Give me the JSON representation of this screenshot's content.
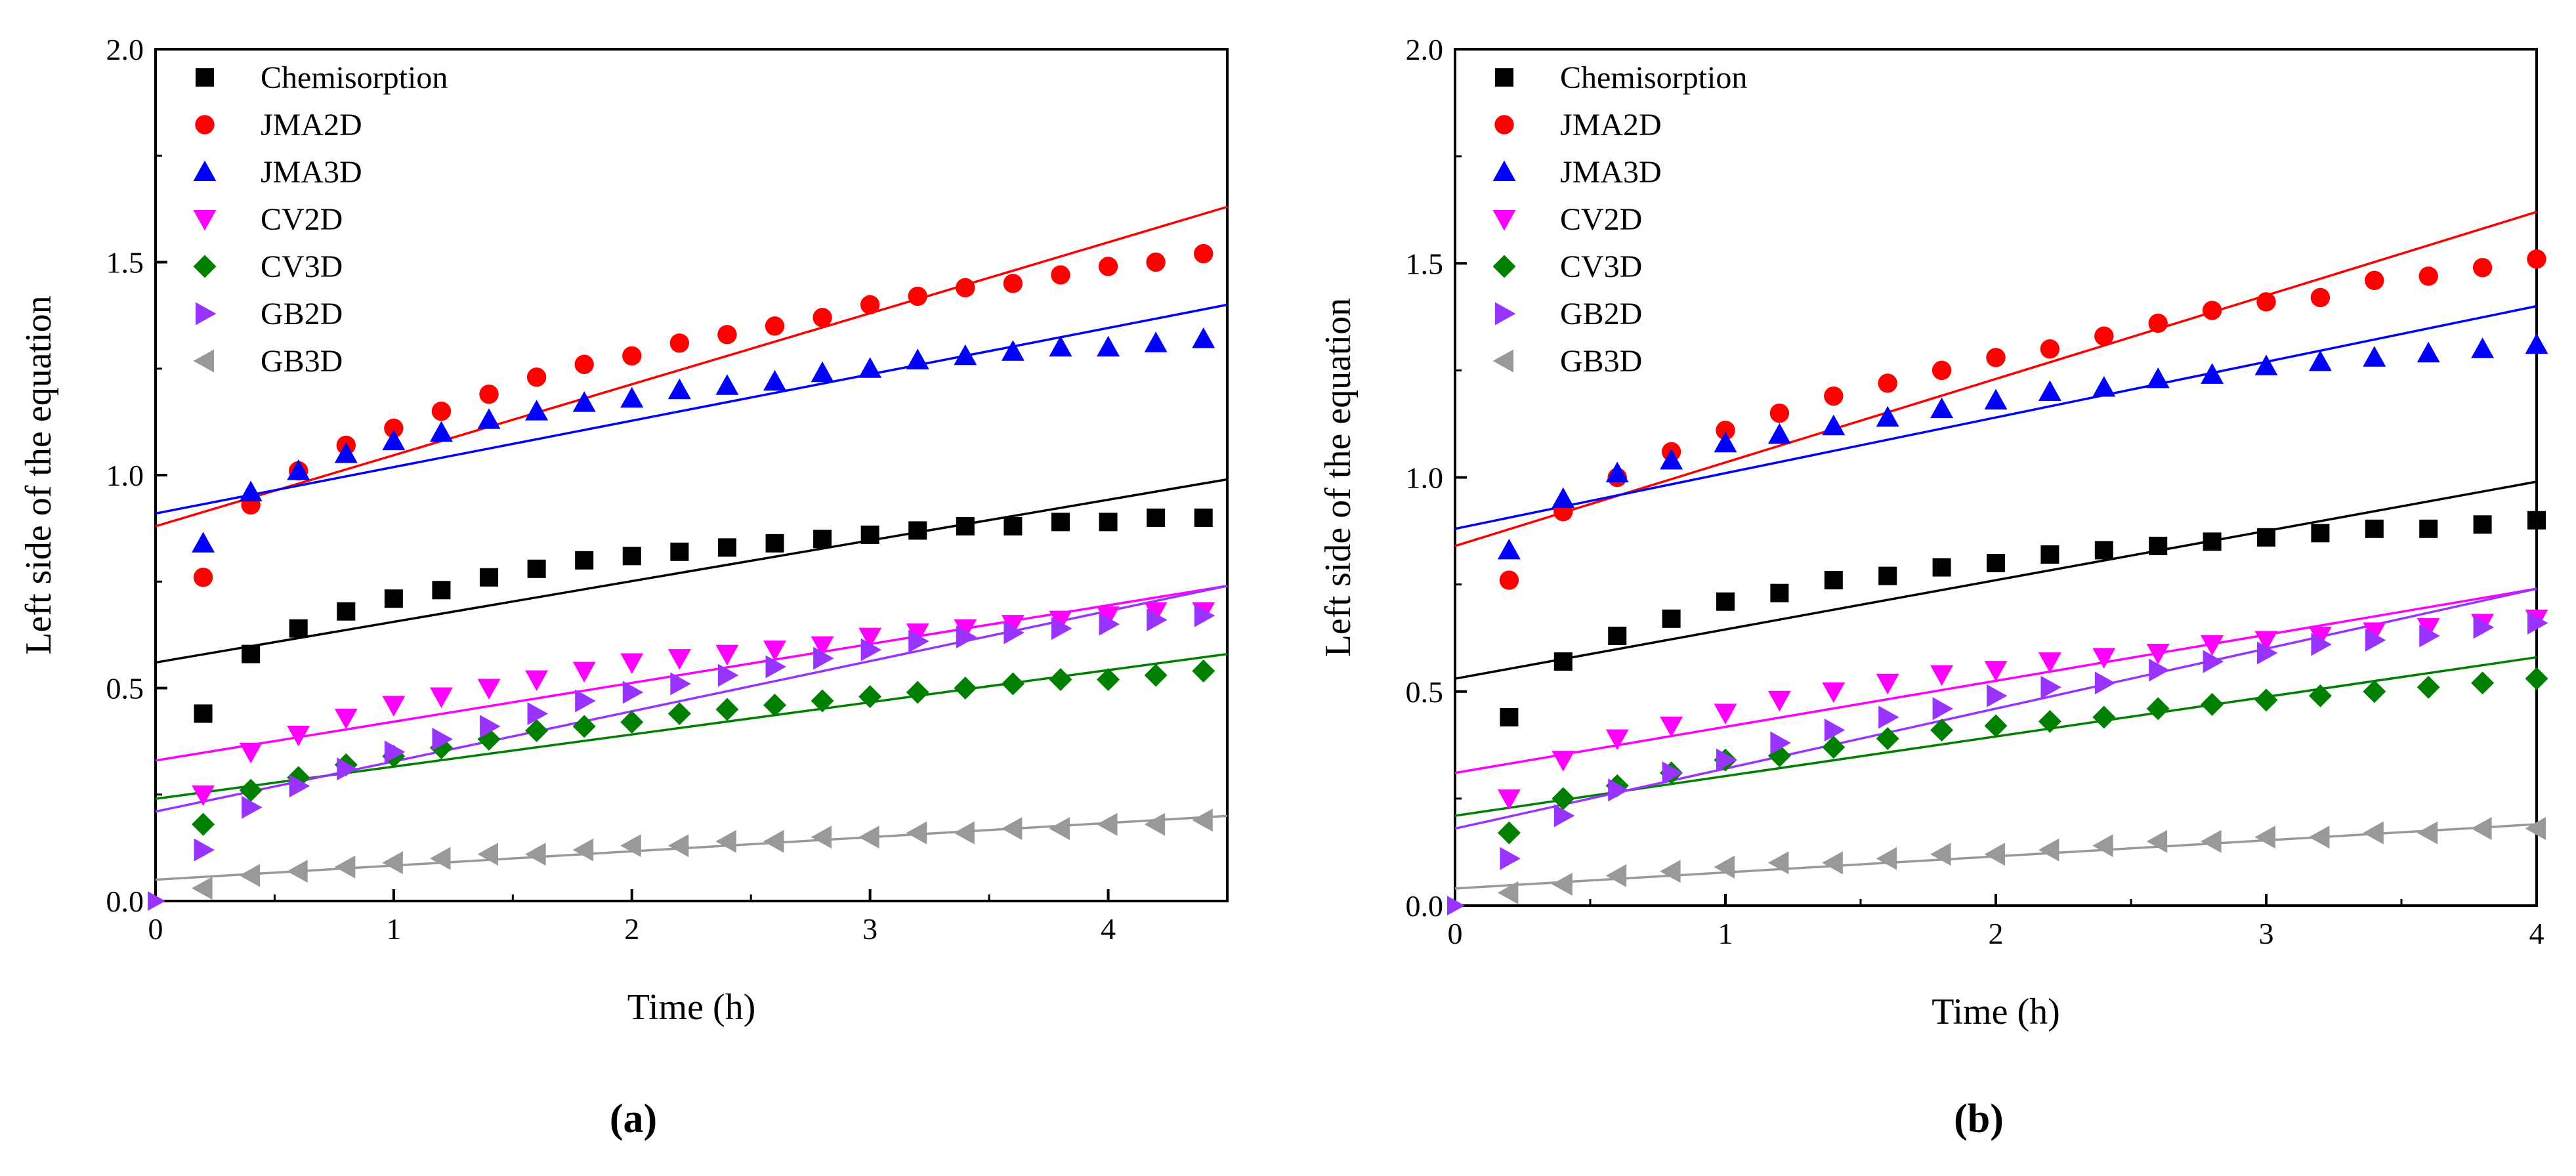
{
  "figure": {
    "panels": [
      {
        "label": "(a)"
      },
      {
        "label": "(b)"
      }
    ]
  },
  "chart_data": [
    {
      "type": "scatter",
      "panel": "(a)",
      "title": "",
      "xlabel": "Time (h)",
      "ylabel": "Left side of the equation",
      "xlim": [
        0,
        4.5
      ],
      "ylim": [
        0,
        2.0
      ],
      "xticks": [
        0,
        1,
        2,
        3,
        4
      ],
      "xtick_labels": [
        "0",
        "1",
        "2",
        "3",
        "4"
      ],
      "yticks": [
        0,
        0.5,
        1.0,
        1.5,
        2.0
      ],
      "ytick_labels": [
        "0.0",
        "0.5",
        "1.0",
        "1.5",
        "2.0"
      ],
      "grid": false,
      "legend_position": "top-left",
      "x": [
        0.2,
        0.4,
        0.6,
        0.8,
        1.0,
        1.2,
        1.4,
        1.6,
        1.8,
        2.0,
        2.2,
        2.4,
        2.6,
        2.8,
        3.0,
        3.2,
        3.4,
        3.6,
        3.8,
        4.0,
        4.2,
        4.4
      ],
      "series": [
        {
          "name": "Chemisorption",
          "color": "#000000",
          "marker": "square",
          "values": [
            0.44,
            0.58,
            0.64,
            0.68,
            0.71,
            0.73,
            0.76,
            0.78,
            0.8,
            0.81,
            0.82,
            0.83,
            0.84,
            0.85,
            0.86,
            0.87,
            0.88,
            0.88,
            0.89,
            0.89,
            0.9,
            0.9
          ],
          "fit": {
            "x": [
              0,
              4.5
            ],
            "y": [
              0.56,
              0.99
            ]
          }
        },
        {
          "name": "JMA2D",
          "color": "#ff0000",
          "marker": "circle",
          "values": [
            0.76,
            0.93,
            1.01,
            1.07,
            1.11,
            1.15,
            1.19,
            1.23,
            1.26,
            1.28,
            1.31,
            1.33,
            1.35,
            1.37,
            1.4,
            1.42,
            1.44,
            1.45,
            1.47,
            1.49,
            1.5,
            1.52
          ],
          "fit": {
            "x": [
              0,
              4.5
            ],
            "y": [
              0.88,
              1.63
            ]
          }
        },
        {
          "name": "JMA3D",
          "color": "#0000ff",
          "marker": "triangle-up",
          "values": [
            0.84,
            0.96,
            1.01,
            1.05,
            1.08,
            1.1,
            1.13,
            1.15,
            1.17,
            1.18,
            1.2,
            1.21,
            1.22,
            1.24,
            1.25,
            1.27,
            1.28,
            1.29,
            1.3,
            1.3,
            1.31,
            1.32
          ],
          "fit": {
            "x": [
              0,
              4.5
            ],
            "y": [
              0.91,
              1.4
            ]
          }
        },
        {
          "name": "CV2D",
          "color": "#ff00ff",
          "marker": "triangle-down",
          "values": [
            0.25,
            0.35,
            0.39,
            0.43,
            0.46,
            0.48,
            0.5,
            0.52,
            0.54,
            0.56,
            0.57,
            0.58,
            0.59,
            0.6,
            0.62,
            0.63,
            0.64,
            0.65,
            0.66,
            0.67,
            0.68,
            0.68
          ],
          "fit": {
            "x": [
              0,
              4.5
            ],
            "y": [
              0.33,
              0.74
            ]
          }
        },
        {
          "name": "CV3D",
          "color": "#008000",
          "marker": "diamond",
          "values": [
            0.18,
            0.26,
            0.29,
            0.32,
            0.34,
            0.36,
            0.38,
            0.4,
            0.41,
            0.42,
            0.44,
            0.45,
            0.46,
            0.47,
            0.48,
            0.49,
            0.5,
            0.51,
            0.52,
            0.52,
            0.53,
            0.54
          ],
          "fit": {
            "x": [
              0,
              4.5
            ],
            "y": [
              0.24,
              0.58
            ]
          }
        },
        {
          "name": "GB2D",
          "color": "#9933ff",
          "marker": "triangle-right",
          "values": [
            0.12,
            0.22,
            0.27,
            0.31,
            0.35,
            0.38,
            0.41,
            0.44,
            0.47,
            0.49,
            0.51,
            0.53,
            0.55,
            0.57,
            0.59,
            0.61,
            0.62,
            0.63,
            0.64,
            0.65,
            0.66,
            0.67
          ],
          "fit": {
            "x": [
              0,
              4.5
            ],
            "y": [
              0.21,
              0.74
            ]
          }
        },
        {
          "name": "GB3D",
          "color": "#999999",
          "marker": "triangle-left",
          "values": [
            0.03,
            0.06,
            0.07,
            0.08,
            0.09,
            0.1,
            0.11,
            0.11,
            0.12,
            0.13,
            0.13,
            0.14,
            0.14,
            0.15,
            0.15,
            0.16,
            0.16,
            0.17,
            0.17,
            0.18,
            0.18,
            0.19
          ],
          "fit": {
            "x": [
              0,
              4.5
            ],
            "y": [
              0.05,
              0.2
            ]
          }
        }
      ],
      "extra_points": [
        {
          "x": 0,
          "y": 0.0,
          "color": "#9933ff",
          "marker": "triangle-right"
        }
      ]
    },
    {
      "type": "scatter",
      "panel": "(b)",
      "title": "",
      "xlabel": "Time (h)",
      "ylabel": "Left side of the equation",
      "xlim": [
        0,
        4
      ],
      "ylim": [
        0,
        2.0
      ],
      "xticks": [
        0,
        1,
        2,
        3,
        4
      ],
      "xtick_labels": [
        "0",
        "1",
        "2",
        "3",
        "4"
      ],
      "yticks": [
        0,
        0.5,
        1.0,
        1.5,
        2.0
      ],
      "ytick_labels": [
        "0.0",
        "0.5",
        "1.0",
        "1.5",
        "2.0"
      ],
      "grid": false,
      "legend_position": "top-left",
      "x": [
        0.2,
        0.4,
        0.6,
        0.8,
        1.0,
        1.2,
        1.4,
        1.6,
        1.8,
        2.0,
        2.2,
        2.4,
        2.6,
        2.8,
        3.0,
        3.2,
        3.4,
        3.6,
        3.8,
        4.0
      ],
      "series": [
        {
          "name": "Chemisorption",
          "color": "#000000",
          "marker": "square",
          "values": [
            0.44,
            0.57,
            0.63,
            0.67,
            0.71,
            0.73,
            0.76,
            0.77,
            0.79,
            0.8,
            0.82,
            0.83,
            0.84,
            0.85,
            0.86,
            0.87,
            0.88,
            0.88,
            0.89,
            0.9
          ],
          "fit": {
            "x": [
              0,
              4
            ],
            "y": [
              0.53,
              0.99
            ]
          }
        },
        {
          "name": "JMA2D",
          "color": "#ff0000",
          "marker": "circle",
          "values": [
            0.76,
            0.92,
            1.0,
            1.06,
            1.11,
            1.15,
            1.19,
            1.22,
            1.25,
            1.28,
            1.3,
            1.33,
            1.36,
            1.39,
            1.41,
            1.42,
            1.46,
            1.47,
            1.49,
            1.51
          ],
          "fit": {
            "x": [
              0,
              4
            ],
            "y": [
              0.84,
              1.62
            ]
          }
        },
        {
          "name": "JMA3D",
          "color": "#0000ff",
          "marker": "triangle-up",
          "values": [
            0.83,
            0.95,
            1.01,
            1.04,
            1.08,
            1.1,
            1.12,
            1.14,
            1.16,
            1.18,
            1.2,
            1.21,
            1.23,
            1.24,
            1.26,
            1.27,
            1.28,
            1.29,
            1.3,
            1.31
          ],
          "fit": {
            "x": [
              0,
              4
            ],
            "y": [
              0.88,
              1.4
            ]
          }
        },
        {
          "name": "CV2D",
          "color": "#ff00ff",
          "marker": "triangle-down",
          "values": [
            0.25,
            0.34,
            0.39,
            0.42,
            0.45,
            0.48,
            0.5,
            0.52,
            0.54,
            0.55,
            0.57,
            0.58,
            0.59,
            0.61,
            0.62,
            0.63,
            0.64,
            0.65,
            0.66,
            0.67
          ],
          "fit": {
            "x": [
              0,
              4
            ],
            "y": [
              0.31,
              0.74
            ]
          }
        },
        {
          "name": "CV3D",
          "color": "#008000",
          "marker": "diamond",
          "values": [
            0.17,
            0.25,
            0.28,
            0.31,
            0.34,
            0.35,
            0.37,
            0.39,
            0.41,
            0.42,
            0.43,
            0.44,
            0.46,
            0.47,
            0.48,
            0.49,
            0.5,
            0.51,
            0.52,
            0.53
          ],
          "fit": {
            "x": [
              0,
              4
            ],
            "y": [
              0.21,
              0.58
            ]
          }
        },
        {
          "name": "GB2D",
          "color": "#9933ff",
          "marker": "triangle-right",
          "values": [
            0.11,
            0.21,
            0.27,
            0.31,
            0.34,
            0.38,
            0.41,
            0.44,
            0.46,
            0.49,
            0.51,
            0.52,
            0.55,
            0.57,
            0.59,
            0.61,
            0.62,
            0.63,
            0.65,
            0.66
          ],
          "fit": {
            "x": [
              0,
              4
            ],
            "y": [
              0.18,
              0.74
            ]
          }
        },
        {
          "name": "GB3D",
          "color": "#999999",
          "marker": "triangle-left",
          "values": [
            0.03,
            0.05,
            0.07,
            0.08,
            0.09,
            0.1,
            0.1,
            0.11,
            0.12,
            0.12,
            0.13,
            0.14,
            0.15,
            0.15,
            0.16,
            0.16,
            0.17,
            0.17,
            0.18,
            0.18
          ],
          "fit": {
            "x": [
              0,
              4
            ],
            "y": [
              0.04,
              0.19
            ]
          }
        }
      ],
      "extra_points": [
        {
          "x": 0,
          "y": 0.0,
          "color": "#9933ff",
          "marker": "triangle-right"
        }
      ]
    }
  ]
}
